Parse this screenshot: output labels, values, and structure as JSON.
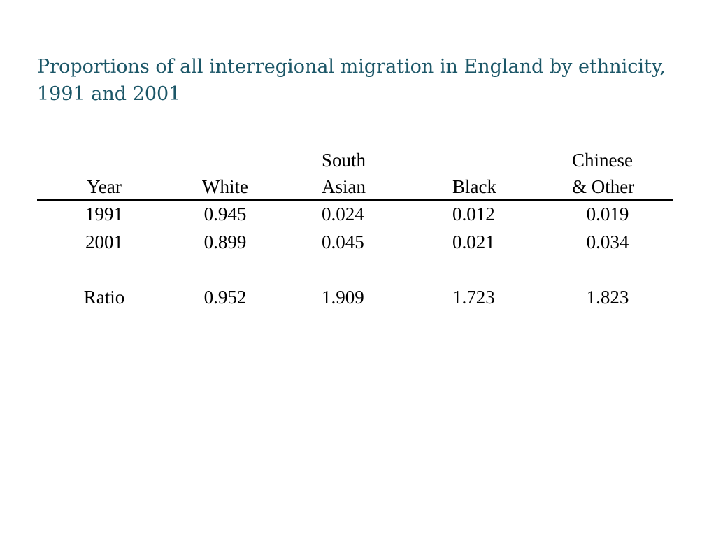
{
  "title": "Proportions of all interregional migration in England by ethnicity, 1991 and 2001",
  "table": {
    "headers": [
      {
        "line1": "",
        "line2": "Year"
      },
      {
        "line1": "",
        "line2": "White"
      },
      {
        "line1": "South",
        "line2": "Asian"
      },
      {
        "line1": "",
        "line2": "Black"
      },
      {
        "line1": "Chinese",
        "line2": "& Other"
      }
    ],
    "rows": [
      {
        "label": "1991",
        "values": [
          "0.945",
          "0.024",
          "0.012",
          "0.019"
        ]
      },
      {
        "label": "2001",
        "values": [
          "0.899",
          "0.045",
          "0.021",
          "0.034"
        ]
      }
    ],
    "ratio": {
      "label": "Ratio",
      "values": [
        "0.952",
        "1.909",
        "1.723",
        "1.823"
      ]
    }
  }
}
